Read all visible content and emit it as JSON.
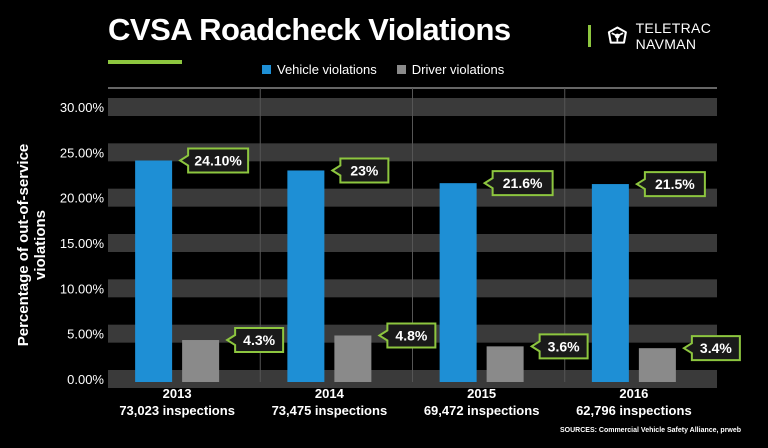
{
  "header": {
    "title": "CVSA Roadcheck Violations",
    "brand": "TELETRAC NAVMAN",
    "brand_icon": "teletrac-navman-logo-icon"
  },
  "colors": {
    "vehicle": "#1e8fd5",
    "driver": "#8a8a8a",
    "accent": "#8dc63f",
    "band": "#3a3a3a"
  },
  "source": "SOURCES: Commercial Vehicle Safety Alliance, prweb",
  "chart_data": {
    "type": "bar",
    "title": "CVSA Roadcheck Violations",
    "ylabel": "Percentage of out-of-service violations",
    "xlabel": "",
    "ylim": [
      0,
      30
    ],
    "yticks": [
      "0.00%",
      "5.00%",
      "10.00%",
      "15.00%",
      "20.00%",
      "25.00%",
      "30.00%"
    ],
    "ytick_values": [
      0,
      5,
      10,
      15,
      20,
      25,
      30
    ],
    "grid": true,
    "legend": "top-center",
    "categories": [
      "2013",
      "2014",
      "2015",
      "2016"
    ],
    "category_sublabels": [
      "73,023 inspections",
      "73,475 inspections",
      "69,472 inspections",
      "62,796 inspections"
    ],
    "series": [
      {
        "name": "Vehicle violations",
        "values": [
          24.1,
          23,
          21.6,
          21.5
        ],
        "labels": [
          "24.10%",
          "23%",
          "21.6%",
          "21.5%"
        ]
      },
      {
        "name": "Driver violations",
        "values": [
          4.3,
          4.8,
          3.6,
          3.4
        ],
        "labels": [
          "4.3%",
          "4.8%",
          "3.6%",
          "3.4%"
        ]
      }
    ]
  }
}
